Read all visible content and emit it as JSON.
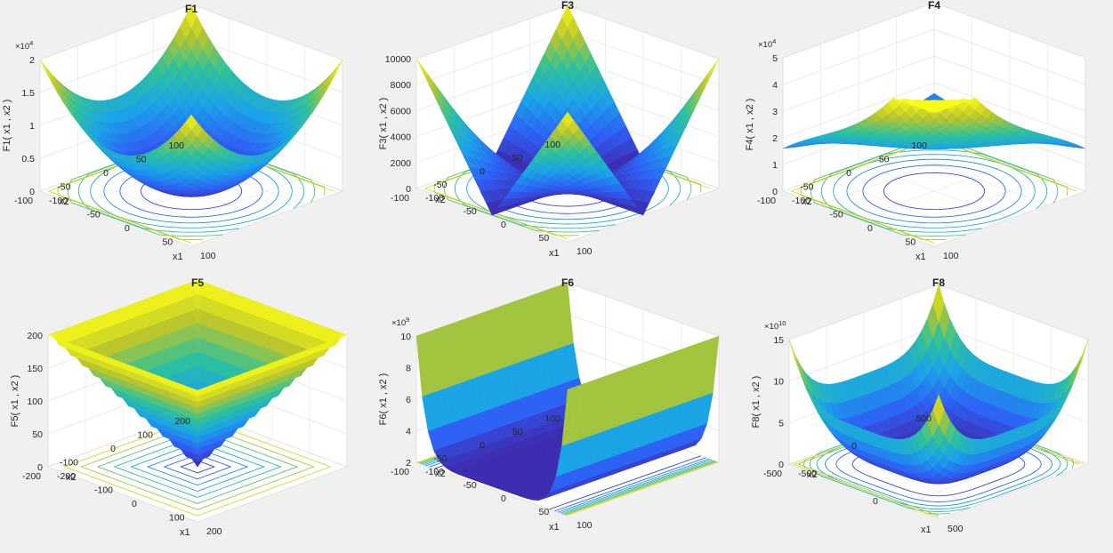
{
  "chart_data": [
    {
      "type": "surface",
      "title": "F1",
      "zlabel": "F1( x1 , x2 )",
      "zexp": "4",
      "z_ticks": [
        "0",
        "0.5",
        "1",
        "1.5",
        "2"
      ],
      "x1_label": "x1",
      "x2_label": "x2",
      "x1_ticks": [
        "-100",
        "-50",
        "0",
        "50",
        "100"
      ],
      "x2_ticks": [
        "-100",
        "-50",
        "0",
        "50",
        "100"
      ],
      "zlim": [
        0,
        20000
      ],
      "formula": "x1^2 + x2^2",
      "contours": "circles",
      "grid": true
    },
    {
      "type": "surface",
      "title": "F3",
      "zlabel": "F3( x1 , x2 )",
      "zexp": "",
      "z_ticks": [
        "0",
        "2000",
        "4000",
        "6000",
        "8000",
        "10000"
      ],
      "x1_label": "x1",
      "x2_label": "x2",
      "x1_ticks": [
        "-100",
        "-50",
        "0",
        "50",
        "100"
      ],
      "x2_ticks": [
        "-100",
        "-50",
        "0",
        "50",
        "100"
      ],
      "zlim": [
        0,
        10000
      ],
      "formula": "|x1| * |x2| style peaks at corners",
      "contours": "hyperbolic",
      "grid": true
    },
    {
      "type": "surface",
      "title": "F4",
      "zlabel": "F4( x1 , x2 )",
      "zexp": "4",
      "z_ticks": [
        "0",
        "1",
        "2",
        "3",
        "4",
        "5"
      ],
      "x1_label": "x1",
      "x2_label": "x2",
      "x1_ticks": [
        "-100",
        "-50",
        "0",
        "50",
        "100"
      ],
      "x2_ticks": [
        "-100",
        "-50",
        "0",
        "50",
        "100"
      ],
      "zlim": [
        0,
        50000
      ],
      "formula": "ramp surface",
      "contours": "arcs",
      "grid": true
    },
    {
      "type": "surface",
      "title": "F5",
      "zlabel": "F5( x1 , x2 )",
      "zexp": "",
      "z_ticks": [
        "0",
        "50",
        "100",
        "150",
        "200"
      ],
      "x1_label": "x1",
      "x2_label": "x2",
      "x1_ticks": [
        "-200",
        "-100",
        "0",
        "100",
        "200"
      ],
      "x2_ticks": [
        "-200",
        "-100",
        "0",
        "100",
        "200"
      ],
      "zlim": [
        0,
        200
      ],
      "formula": "max(|x1|, |x2|)",
      "contours": "squares",
      "grid": true
    },
    {
      "type": "surface",
      "title": "F6",
      "zlabel": "F6( x1 , x2 )",
      "zexp": "9",
      "z_ticks": [
        "2",
        "4",
        "6",
        "8",
        "10"
      ],
      "x1_label": "x1",
      "x2_label": "x2",
      "x1_ticks": [
        "-100",
        "-50",
        "0",
        "50",
        "100"
      ],
      "x2_ticks": [
        "-100",
        "-50",
        "0",
        "50",
        "100"
      ],
      "zlim": [
        0,
        10000000000
      ],
      "formula": "valley along x1",
      "contours": "lines",
      "grid": true
    },
    {
      "type": "surface",
      "title": "F8",
      "zlabel": "F8( x1 , x2 )",
      "zexp": "10",
      "z_ticks": [
        "0",
        "5",
        "10",
        "15"
      ],
      "x1_label": "x1",
      "x2_label": "x2",
      "x1_ticks": [
        "-500",
        "0",
        "500"
      ],
      "x2_ticks": [
        "-500",
        "0",
        "500"
      ],
      "zlim": [
        0,
        180000000000
      ],
      "formula": "x1^4 + x2^4 style",
      "contours": "rounded-squares",
      "grid": true
    }
  ]
}
